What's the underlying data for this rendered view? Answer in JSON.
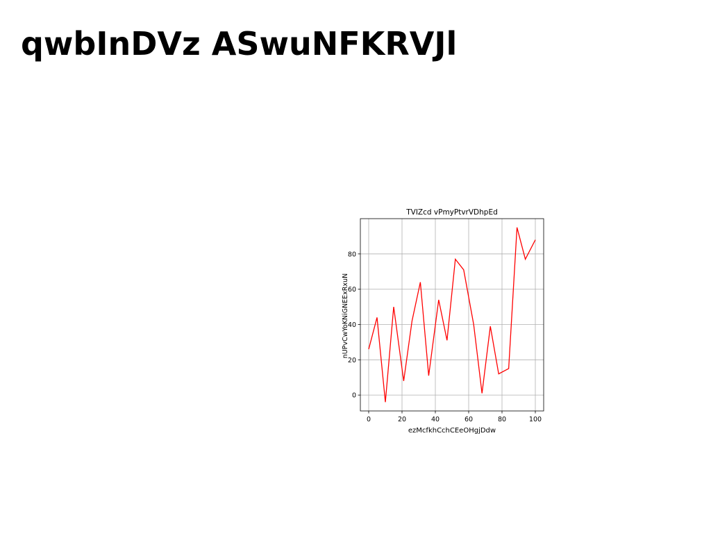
{
  "page": {
    "title": "qwbInDVz ASwuNFKRVJl"
  },
  "chart_data": {
    "type": "line",
    "title": "TVIZcd vPmyPtvrVDhpEd",
    "xlabel": "ezMcfkhCchCEeOHgjDdw",
    "ylabel": "nUPvCwYoKNiGNEExRxuN",
    "xlim": [
      -5,
      105
    ],
    "ylim": [
      -9,
      100
    ],
    "xticks": [
      0,
      20,
      40,
      60,
      80,
      100
    ],
    "yticks": [
      0,
      20,
      40,
      60,
      80
    ],
    "grid": true,
    "legend": "none",
    "series": [
      {
        "color": "#ff0000",
        "x": [
          0,
          5,
          10,
          15,
          21,
          26,
          31,
          36,
          42,
          47,
          52,
          57,
          63,
          68,
          73,
          78,
          84,
          89,
          94,
          100
        ],
        "y": [
          26,
          44,
          -4,
          50,
          8,
          42,
          64,
          11,
          54,
          31,
          77,
          71,
          40,
          1,
          39,
          12,
          15,
          95,
          77,
          88
        ]
      }
    ]
  }
}
